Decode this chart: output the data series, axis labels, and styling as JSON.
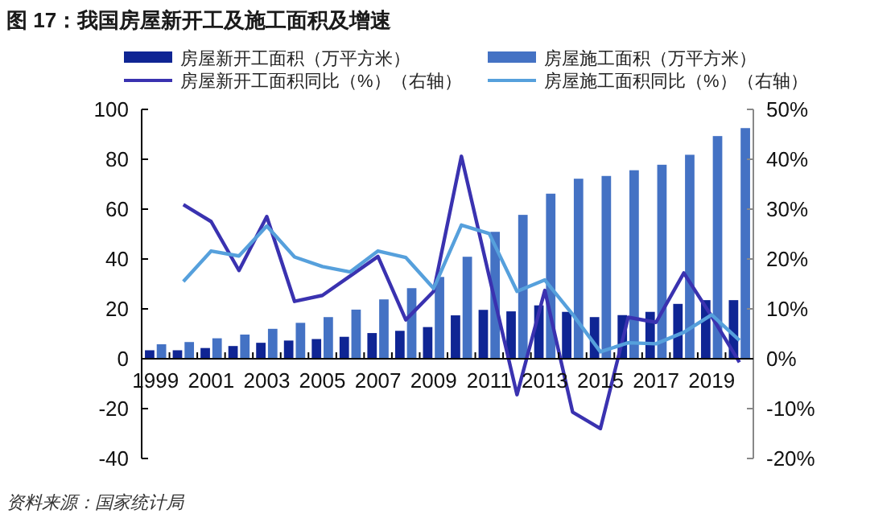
{
  "chart_data": {
    "type": "bar",
    "title": "图 17：我国房屋新开工及施工面积及增速",
    "categories": [
      "1999",
      null,
      "2001",
      null,
      "2003",
      null,
      "2005",
      null,
      "2007",
      null,
      "2009",
      null,
      "2011",
      null,
      "2013",
      null,
      "2015",
      null,
      "2017",
      null,
      "2019",
      null
    ],
    "series": [
      {
        "name": "房屋新开工面积（万平方米）",
        "color": "#0f2594",
        "values": [
          3.4,
          3.4,
          4.3,
          5.1,
          6.4,
          7.3,
          7.9,
          8.8,
          10.3,
          11.2,
          12.7,
          17.4,
          19.6,
          19.0,
          21.4,
          18.8,
          16.7,
          17.5,
          18.8,
          22.0,
          23.5,
          23.5
        ]
      },
      {
        "name": "房屋施工面积（万平方米）",
        "color": "#4472c4",
        "values": [
          5.8,
          6.7,
          8.2,
          9.7,
          12.0,
          14.4,
          16.7,
          19.7,
          23.8,
          28.3,
          32.8,
          40.9,
          50.9,
          57.7,
          66.2,
          72.2,
          73.3,
          75.6,
          77.8,
          81.8,
          89.3,
          92.5
        ]
      },
      {
        "name": "房屋新开工面积同比（%）（右轴）",
        "type": "line",
        "axis": "y2",
        "color": "#3a32b0",
        "values": [
          null,
          30.9,
          27.5,
          17.7,
          28.5,
          11.5,
          12.7,
          16.6,
          20.5,
          7.8,
          13.5,
          40.6,
          16.5,
          -7.2,
          13.7,
          -10.7,
          -14.0,
          8.3,
          7.3,
          17.2,
          8.5,
          -0.7
        ]
      },
      {
        "name": "房屋施工面积同比（%）（右轴）",
        "type": "line",
        "axis": "y2",
        "color": "#56a0dc",
        "values": [
          null,
          15.5,
          21.6,
          20.6,
          26.6,
          20.4,
          18.5,
          17.4,
          21.6,
          20.3,
          14.1,
          26.8,
          25.1,
          13.5,
          15.8,
          8.9,
          1.4,
          3.2,
          3.0,
          5.3,
          8.8,
          3.7
        ]
      }
    ],
    "ylim": [
      -40,
      100
    ],
    "yticks": [
      -40,
      -20,
      0,
      20,
      40,
      60,
      80,
      100
    ],
    "y2lim": [
      -20,
      50
    ],
    "y2ticks": [
      {
        "value": -20,
        "label": "-20%"
      },
      {
        "value": -10,
        "label": "-10%"
      },
      {
        "value": 0,
        "label": "0%"
      },
      {
        "value": 10,
        "label": "10%"
      },
      {
        "value": 20,
        "label": "20%"
      },
      {
        "value": 30,
        "label": "30%"
      },
      {
        "value": 40,
        "label": "40%"
      },
      {
        "value": 50,
        "label": "50%"
      }
    ],
    "grid": false,
    "legend": "top",
    "annotations": [
      "资料来源：国家统计局"
    ]
  }
}
